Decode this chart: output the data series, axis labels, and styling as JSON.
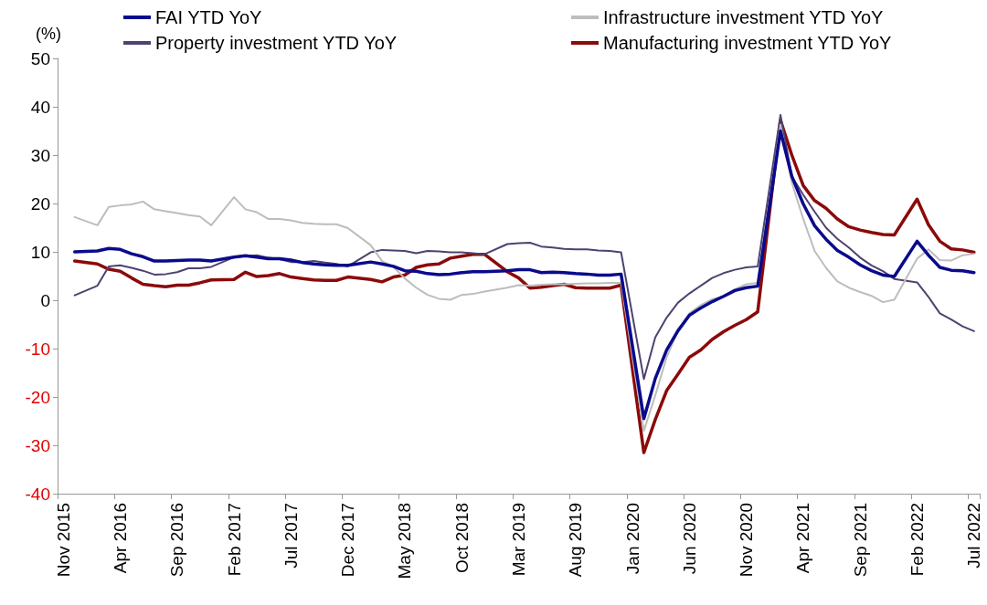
{
  "chart_data": {
    "type": "line",
    "ylabel": "(%)",
    "categories": [
      "Nov 2015",
      null,
      null,
      null,
      null,
      "Apr 2016",
      null,
      null,
      null,
      null,
      "Sep 2016",
      null,
      null,
      null,
      null,
      "Feb 2017",
      null,
      null,
      null,
      null,
      "Jul 2017",
      null,
      null,
      null,
      null,
      "Dec 2017",
      null,
      null,
      null,
      null,
      "May 2018",
      null,
      null,
      null,
      null,
      "Oct 2018",
      null,
      null,
      null,
      null,
      "Mar 2019",
      null,
      null,
      null,
      null,
      "Aug 2019",
      null,
      null,
      null,
      null,
      "Jan 2020",
      null,
      null,
      null,
      null,
      "Jun 2020",
      null,
      null,
      null,
      null,
      "Nov 2020",
      null,
      null,
      null,
      null,
      "Apr 2021",
      null,
      null,
      null,
      null,
      "Sep 2021",
      null,
      null,
      null,
      null,
      "Feb 2022",
      null,
      null,
      null,
      null,
      "Jul 2022"
    ],
    "series": [
      {
        "name": "FAI YTD YoY",
        "color": "#0a0a8c",
        "values": [
          null,
          10.0,
          null,
          10.2,
          10.7,
          10.5,
          9.6,
          9.0,
          8.1,
          8.1,
          8.2,
          8.3,
          8.3,
          8.1,
          null,
          8.9,
          9.2,
          8.9,
          8.6,
          8.6,
          8.3,
          7.8,
          7.5,
          7.3,
          7.2,
          7.2,
          null,
          7.9,
          7.5,
          7.0,
          6.1,
          6.0,
          5.5,
          5.3,
          5.4,
          5.7,
          5.9,
          5.9,
          null,
          6.1,
          6.3,
          6.3,
          5.7,
          5.8,
          5.7,
          5.5,
          5.4,
          5.2,
          5.2,
          5.4,
          null,
          -24.5,
          -16.2,
          -10.3,
          -6.3,
          -3.1,
          -1.6,
          -0.3,
          0.8,
          2.0,
          2.6,
          2.9,
          null,
          35.0,
          25.6,
          19.9,
          15.4,
          12.6,
          10.3,
          8.9,
          7.3,
          6.1,
          5.2,
          4.9,
          null,
          12.2,
          9.3,
          6.8,
          6.2,
          6.1,
          5.7
        ]
      },
      {
        "name": "Infrastructure investment YTD YoY",
        "color": "#bdbdbd",
        "values": [
          null,
          17.2,
          null,
          15.5,
          19.3,
          19.6,
          19.8,
          20.4,
          18.8,
          18.4,
          18.0,
          17.6,
          17.3,
          15.5,
          null,
          21.3,
          18.8,
          18.2,
          16.8,
          16.8,
          16.5,
          16.0,
          15.8,
          15.7,
          15.7,
          14.9,
          null,
          11.4,
          8.1,
          6.9,
          4.5,
          2.6,
          1.1,
          0.3,
          0.1,
          1.1,
          1.3,
          1.8,
          null,
          2.6,
          3.1,
          3.0,
          3.2,
          3.3,
          3.3,
          3.4,
          3.5,
          3.5,
          3.6,
          3.6,
          null,
          -27.0,
          -19.7,
          -11.8,
          -6.3,
          -2.7,
          -1.0,
          0.2,
          0.8,
          2.3,
          3.3,
          3.6,
          null,
          36.3,
          24.3,
          16.8,
          10.2,
          6.7,
          3.9,
          2.6,
          1.7,
          0.9,
          -0.4,
          0.1,
          null,
          8.6,
          10.5,
          8.3,
          8.2,
          9.3,
          9.6
        ]
      },
      {
        "name": "Property investment YTD YoY",
        "color": "#4e4270",
        "values": [
          null,
          1.0,
          null,
          3.0,
          7.0,
          7.2,
          6.7,
          6.1,
          5.3,
          5.4,
          5.8,
          6.6,
          6.6,
          6.9,
          null,
          8.9,
          9.1,
          9.3,
          8.8,
          8.5,
          7.9,
          7.9,
          8.1,
          7.8,
          7.5,
          7.0,
          null,
          9.9,
          10.4,
          10.3,
          10.2,
          9.7,
          10.2,
          10.1,
          9.9,
          9.9,
          9.7,
          9.5,
          null,
          11.6,
          11.8,
          11.9,
          11.1,
          10.9,
          10.6,
          10.5,
          10.5,
          10.3,
          10.2,
          9.9,
          null,
          -16.3,
          -7.7,
          -3.6,
          -0.5,
          1.4,
          3.0,
          4.6,
          5.6,
          6.3,
          6.8,
          7.0,
          null,
          38.3,
          25.6,
          21.8,
          18.3,
          15.0,
          12.7,
          10.9,
          8.8,
          7.2,
          6.0,
          4.4,
          null,
          3.7,
          0.7,
          -2.7,
          -4.0,
          -5.4,
          -6.4
        ]
      },
      {
        "name": "Manufacturing investment YTD YoY",
        "color": "#8b0a0a",
        "values": [
          null,
          8.1,
          null,
          7.5,
          6.4,
          6.0,
          4.6,
          3.3,
          3.0,
          2.8,
          3.1,
          3.1,
          3.6,
          4.2,
          null,
          4.3,
          5.8,
          4.9,
          5.1,
          5.5,
          4.8,
          4.5,
          4.2,
          4.1,
          4.1,
          4.8,
          null,
          4.3,
          3.8,
          4.8,
          5.2,
          6.8,
          7.3,
          7.5,
          8.7,
          9.1,
          9.5,
          9.5,
          null,
          5.9,
          4.6,
          2.5,
          2.7,
          3.0,
          3.3,
          2.6,
          2.5,
          2.5,
          2.5,
          3.1,
          null,
          -31.5,
          -24.7,
          -18.7,
          -15.3,
          -11.8,
          -10.3,
          -8.1,
          -6.5,
          -5.2,
          -4.0,
          -2.4,
          null,
          37.2,
          30.0,
          23.7,
          20.6,
          19.0,
          16.8,
          15.2,
          14.5,
          14.0,
          13.6,
          13.5,
          null,
          20.9,
          15.6,
          12.2,
          10.6,
          10.4,
          9.9
        ]
      }
    ],
    "ylim": [
      -40,
      50
    ],
    "yticks": [
      -40,
      -30,
      -20,
      -10,
      0,
      10,
      20,
      30,
      40,
      50
    ],
    "grid": false,
    "legend": "top",
    "marker": "none",
    "line_style": "solid"
  }
}
